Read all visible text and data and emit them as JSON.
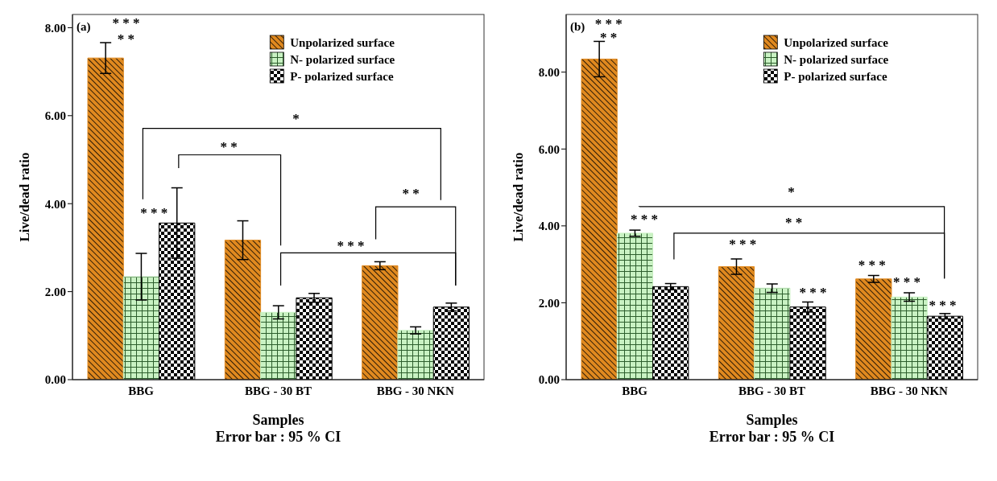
{
  "chart_data": [
    {
      "type": "bar",
      "title": "(a)",
      "xlabel": "Samples",
      "ylabel": "Live/dead  ratio",
      "categories": [
        "BBG",
        "BBG - 30  BT",
        "BBG - 30 NKN"
      ],
      "series": [
        {
          "name": "Unpolarized surface",
          "color": "#e0891f",
          "values": [
            7.31,
            3.17,
            2.59
          ],
          "errors": [
            0.35,
            0.44,
            0.09
          ]
        },
        {
          "name": "N- polarized surface",
          "color": "#c9f2c3",
          "values": [
            2.34,
            1.53,
            1.12
          ],
          "errors": [
            0.53,
            0.15,
            0.08
          ]
        },
        {
          "name": "P- polarized surface",
          "color": "#000000",
          "values": [
            3.56,
            1.86,
            1.65
          ],
          "errors": [
            0.8,
            0.1,
            0.09
          ]
        }
      ],
      "ylim": [
        0,
        8.3
      ],
      "yticks": [
        {
          "value": 0,
          "label": "0.00"
        },
        {
          "value": 2,
          "label": "2.00"
        },
        {
          "value": 4,
          "label": "4.00"
        },
        {
          "value": 6,
          "label": "6.00"
        },
        {
          "value": 8,
          "label": "8.00"
        }
      ],
      "grid": false,
      "legend": "top right",
      "annotations": [
        "* * *",
        "* *",
        "* * *",
        "*",
        "* *",
        "* *",
        "* * *",
        "Error bar : 95 % CI"
      ]
    },
    {
      "type": "bar",
      "title": "(b)",
      "xlabel": "Samples",
      "ylabel": "Live/dead ratio",
      "categories": [
        "BBG",
        "BBG - 30  BT",
        "BBG - 30 NKN"
      ],
      "series": [
        {
          "name": "Unpolarized surface",
          "color": "#e0891f",
          "values": [
            8.34,
            2.94,
            2.62
          ],
          "errors": [
            0.46,
            0.2,
            0.09
          ]
        },
        {
          "name": "N- polarized surface",
          "color": "#c9f2c3",
          "values": [
            3.81,
            2.38,
            2.15
          ],
          "errors": [
            0.08,
            0.11,
            0.11
          ]
        },
        {
          "name": "P- polarized surface",
          "color": "#000000",
          "values": [
            2.42,
            1.89,
            1.65
          ],
          "errors": [
            0.08,
            0.13,
            0.07
          ]
        }
      ],
      "ylim": [
        0,
        9.5
      ],
      "yticks": [
        {
          "value": 0,
          "label": "0.00"
        },
        {
          "value": 2,
          "label": "2.00"
        },
        {
          "value": 4,
          "label": "4.00"
        },
        {
          "value": 6,
          "label": "6.00"
        },
        {
          "value": 8,
          "label": "8.00"
        }
      ],
      "grid": false,
      "legend": "top right",
      "annotations": [
        "* * *",
        "* *",
        "* * *",
        "*",
        "* *",
        "* * *",
        "* * *",
        "* * *",
        "* * *",
        "* * *",
        "Error bar : 95 % CI"
      ]
    }
  ]
}
